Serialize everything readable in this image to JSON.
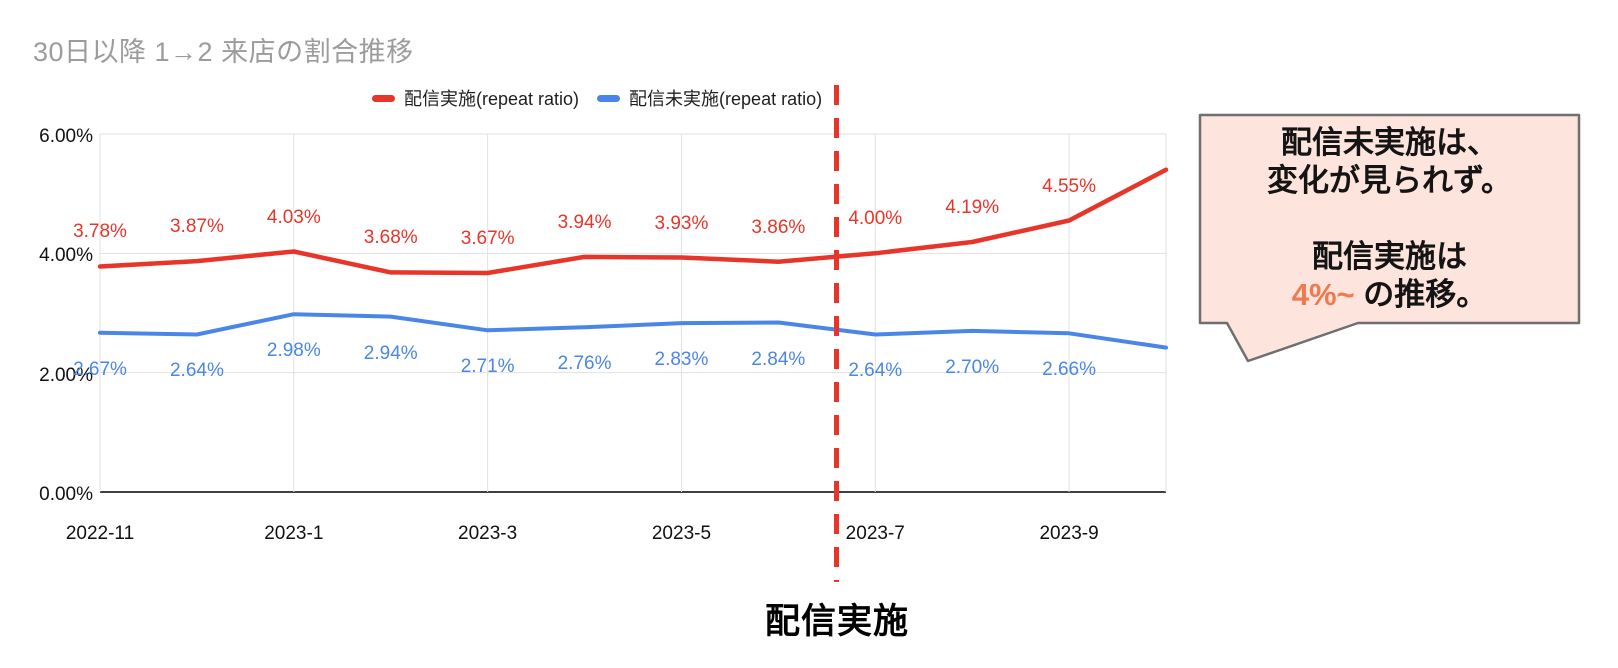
{
  "chart_data": {
    "type": "line",
    "title": "30日以降 1→2 来店の割合推移",
    "x_categories": [
      "2022-11",
      "2022-12",
      "2023-1",
      "2023-2",
      "2023-3",
      "2023-4",
      "2023-5",
      "2023-6",
      "2023-7",
      "2023-8",
      "2023-9",
      "2023-10"
    ],
    "x_tick_labels": [
      "2022-11",
      "2023-1",
      "2023-3",
      "2023-5",
      "2023-7",
      "2023-9"
    ],
    "x_tick_indices": [
      0,
      2,
      4,
      6,
      8,
      10
    ],
    "y_ticks": [
      {
        "label": "6.00%",
        "value": 6
      },
      {
        "label": "4.00%",
        "value": 4
      },
      {
        "label": "2.00%",
        "value": 2
      },
      {
        "label": "0.00%",
        "value": 0
      }
    ],
    "ylim": [
      0,
      6
    ],
    "grid": true,
    "legend_position": "top",
    "series": [
      {
        "name": "配信実施(repeat ratio)",
        "color": "#e8352a",
        "label_position": "above",
        "values": [
          3.78,
          3.87,
          4.03,
          3.68,
          3.67,
          3.94,
          3.93,
          3.86,
          4.0,
          4.19,
          4.55,
          5.4
        ],
        "labels": [
          "3.78%",
          "3.87%",
          "4.03%",
          "3.68%",
          "3.67%",
          "3.94%",
          "3.93%",
          "3.86%",
          "4.00%",
          "4.19%",
          "4.55%",
          ""
        ]
      },
      {
        "name": "配信未実施(repeat ratio)",
        "color": "#4a86e8",
        "label_position": "below",
        "values": [
          2.67,
          2.64,
          2.98,
          2.94,
          2.71,
          2.76,
          2.83,
          2.84,
          2.64,
          2.7,
          2.66,
          2.42
        ],
        "labels": [
          "2.67%",
          "2.64%",
          "2.98%",
          "2.94%",
          "2.71%",
          "2.76%",
          "2.83%",
          "2.84%",
          "2.64%",
          "2.70%",
          "2.66%",
          ""
        ]
      }
    ],
    "vline": {
      "month_index": 7.6,
      "color": "#e8352a",
      "label": "配信実施"
    }
  },
  "callout": {
    "line1": "配信未実施は、",
    "line2": "変化が見られず。",
    "line3": "配信実施は",
    "highlight": "4%~",
    "line4_rest": " の推移。",
    "bg_color": "#fde4dc",
    "border_color": "#6f6f6f",
    "highlight_color": "#ef7a50"
  }
}
